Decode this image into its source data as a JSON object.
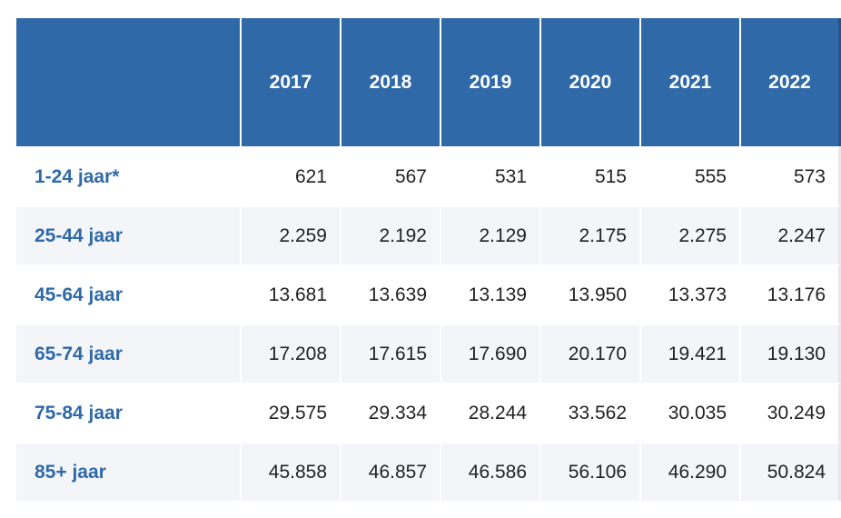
{
  "table": {
    "corner_label": "",
    "years": [
      "2017",
      "2018",
      "2019",
      "2020",
      "2021",
      "2022"
    ],
    "rows": [
      {
        "label": "1-24 jaar*",
        "values": [
          "621",
          "567",
          "531",
          "515",
          "555",
          "573"
        ]
      },
      {
        "label": "25-44 jaar",
        "values": [
          "2.259",
          "2.192",
          "2.129",
          "2.175",
          "2.275",
          "2.247"
        ]
      },
      {
        "label": "45-64 jaar",
        "values": [
          "13.681",
          "13.639",
          "13.139",
          "13.950",
          "13.373",
          "13.176"
        ]
      },
      {
        "label": "65-74 jaar",
        "values": [
          "17.208",
          "17.615",
          "17.690",
          "20.170",
          "19.421",
          "19.130"
        ]
      },
      {
        "label": "75-84 jaar",
        "values": [
          "29.575",
          "29.334",
          "28.244",
          "33.562",
          "30.035",
          "30.249"
        ]
      },
      {
        "label": "85+ jaar",
        "values": [
          "45.858",
          "46.857",
          "46.586",
          "56.106",
          "46.290",
          "50.824"
        ]
      }
    ]
  },
  "colors": {
    "header_bg": "#2f69a8",
    "label_text": "#2f69a8",
    "stripe": "#f3f5f8"
  }
}
